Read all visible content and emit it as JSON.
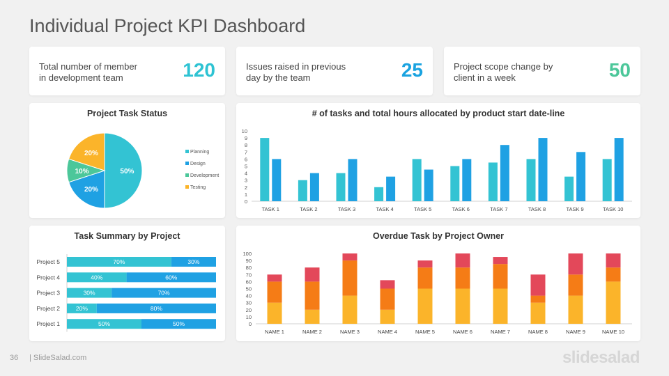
{
  "page": {
    "title": "Individual Project KPI Dashboard",
    "slide_number": "36",
    "footer_site": "| SlideSalad.com",
    "brand": "slidesalad"
  },
  "kpis": [
    {
      "line1": "Total number of member",
      "line2": "in development team",
      "value": "120",
      "color": "#2ec3d3"
    },
    {
      "line1": "Issues raised in previous",
      "line2": "day by the team",
      "value": "25",
      "color": "#1aa3e0"
    },
    {
      "line1": "Project scope change by",
      "line2": "client in a week",
      "value": "50",
      "color": "#4cc79a"
    }
  ],
  "chart_data": [
    {
      "type": "pie",
      "title": "Project Task Status",
      "legend_position": "right",
      "slices": [
        {
          "name": "Planning",
          "value": 50,
          "label": "50%",
          "color": "#33c3d3"
        },
        {
          "name": "Design",
          "value": 20,
          "label": "20%",
          "color": "#1fa1e3"
        },
        {
          "name": "Development",
          "value": 10,
          "label": "10%",
          "color": "#4cc79a"
        },
        {
          "name": "Testing",
          "value": 20,
          "label": "20%",
          "color": "#fbb42a"
        }
      ]
    },
    {
      "type": "bar",
      "title": "# of tasks and total hours allocated by product start date-line",
      "categories": [
        "TASK 1",
        "TASK 2",
        "TASK 3",
        "TASK 4",
        "TASK 5",
        "TASK 6",
        "TASK 7",
        "TASK 8",
        "TASK 9",
        "TASK 10"
      ],
      "series": [
        {
          "values": [
            9,
            3,
            4,
            2,
            6,
            5,
            5.5,
            6,
            3.5,
            6
          ],
          "color": "#33c3d3"
        },
        {
          "values": [
            6,
            4,
            6,
            3.5,
            4.5,
            6,
            8,
            9,
            7,
            9
          ],
          "color": "#1fa1e3"
        }
      ],
      "ylim": [
        0,
        10
      ],
      "yticks": [
        "0",
        "1",
        "2",
        "3",
        "4",
        "5",
        "6",
        "7",
        "8",
        "9",
        "10"
      ],
      "grid": false
    },
    {
      "type": "bar",
      "orientation": "horizontal",
      "stacked": true,
      "title": "Task Summary by Project",
      "categories": [
        "Project 5",
        "Project 4",
        "Project 3",
        "Project 2",
        "Project 1"
      ],
      "series": [
        {
          "values": [
            70,
            40,
            30,
            20,
            50
          ],
          "labels": [
            "70%",
            "40%",
            "30%",
            "20%",
            "50%"
          ],
          "color": "#33c3d3"
        },
        {
          "values": [
            30,
            60,
            70,
            80,
            50
          ],
          "labels": [
            "30%",
            "60%",
            "70%",
            "80%",
            "50%"
          ],
          "color": "#1fa1e3"
        }
      ],
      "xlim": [
        0,
        100
      ]
    },
    {
      "type": "bar",
      "stacked": true,
      "title": "Overdue Task by Project Owner",
      "categories": [
        "NAME 1",
        "NAME 2",
        "NAME 3",
        "NAME 4",
        "NAME 5",
        "NAME 6",
        "NAME 7",
        "NAME 8",
        "NAME 9",
        "NAME 10"
      ],
      "series": [
        {
          "values": [
            30,
            20,
            40,
            20,
            50,
            50,
            50,
            30,
            40,
            60
          ],
          "color": "#fbb42a"
        },
        {
          "values": [
            30,
            40,
            50,
            30,
            30,
            30,
            35,
            10,
            30,
            20
          ],
          "color": "#f57c16"
        },
        {
          "values": [
            10,
            20,
            10,
            12,
            10,
            20,
            10,
            30,
            30,
            20
          ],
          "color": "#e3485a"
        }
      ],
      "ylim": [
        0,
        100
      ],
      "yticks": [
        "0",
        "10",
        "20",
        "30",
        "40",
        "50",
        "60",
        "70",
        "80",
        "90",
        "100"
      ]
    }
  ]
}
